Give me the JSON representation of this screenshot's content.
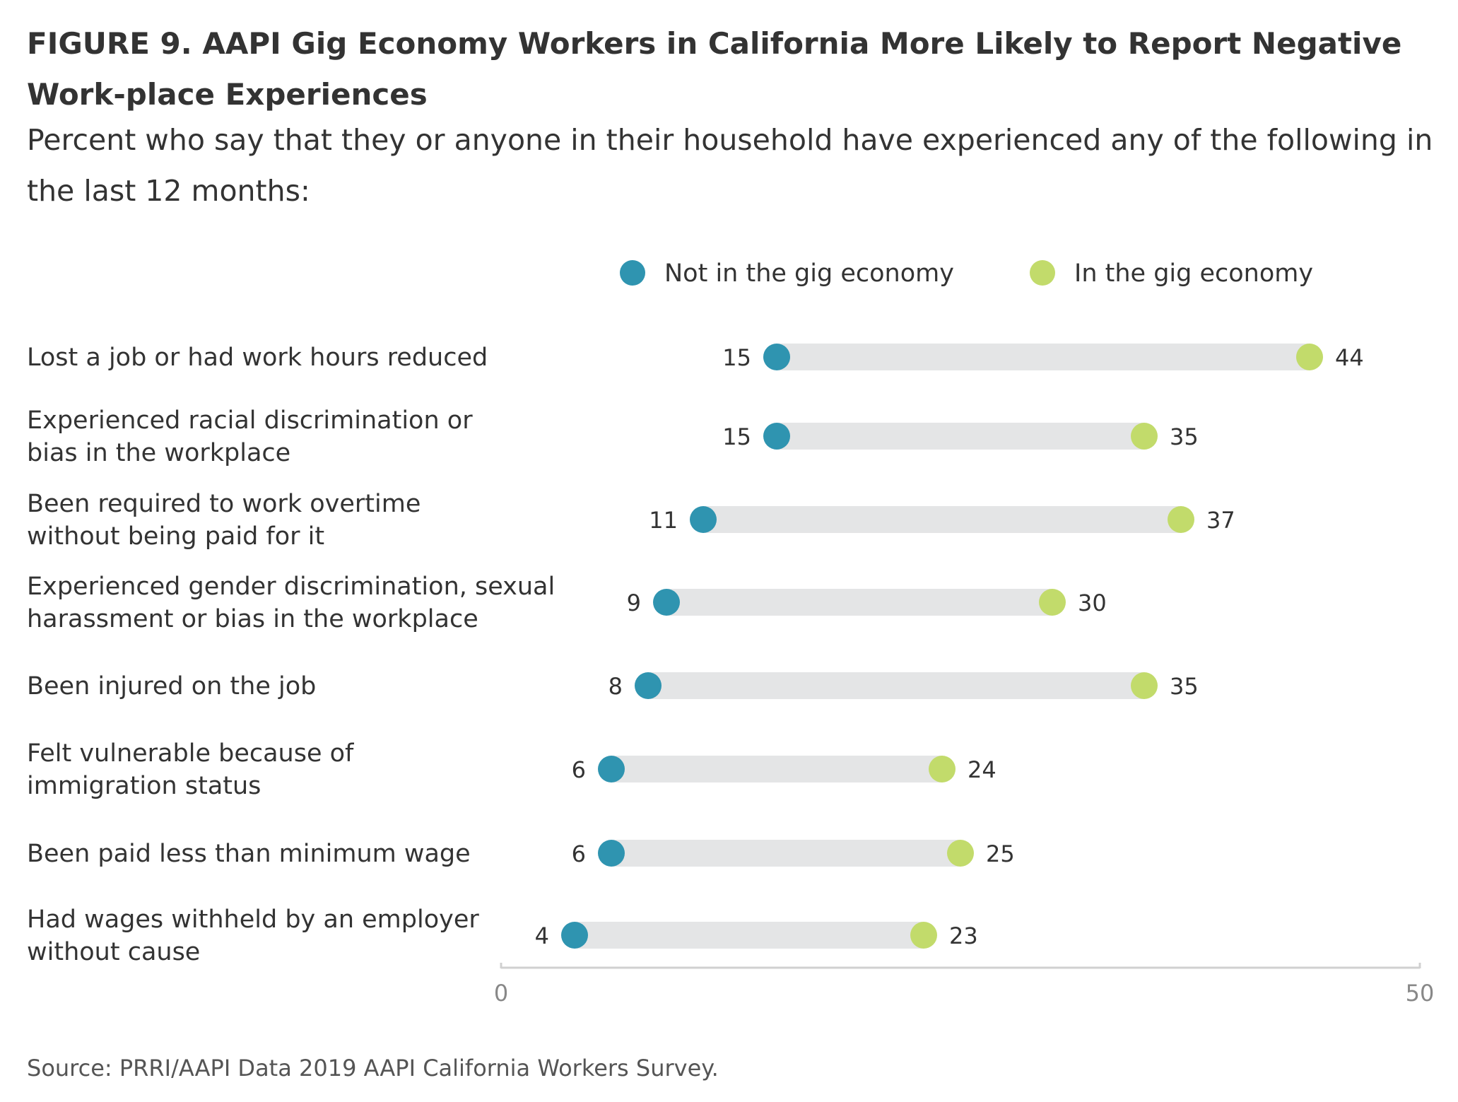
{
  "chart_data": {
    "type": "dumbbell",
    "title": "FIGURE 9. AAPI Gig Economy Workers in California More Likely to Report Negative Work-place Experiences",
    "subtitle": "Percent who say that they or anyone in their household have experienced any of the following in the last 12 months:",
    "categories": [
      "Lost a job or had work hours reduced",
      "Experienced racial discrimination or bias in the workplace",
      "Been required to work overtime without being paid for it",
      "Experienced gender discrimination, sexual harassment or bias in the workplace",
      "Been injured on the job",
      "Felt vulnerable because of immigration status",
      "Been paid less than minimum wage",
      "Had wages withheld by an employer without cause"
    ],
    "category_lines": [
      [
        "Lost a job or had work hours reduced"
      ],
      [
        "Experienced racial discrimination or",
        "bias in the workplace"
      ],
      [
        "Been required to work overtime",
        "without being paid for it"
      ],
      [
        "Experienced gender discrimination, sexual",
        "harassment or bias in the workplace"
      ],
      [
        "Been injured on the job"
      ],
      [
        "Felt vulnerable because of",
        "immigration status"
      ],
      [
        "Been paid less than minimum wage"
      ],
      [
        "Had wages withheld by an employer",
        "without cause"
      ]
    ],
    "series": [
      {
        "name": "Not in the gig economy",
        "color": "#2f94b0",
        "values": [
          15,
          15,
          11,
          9,
          8,
          6,
          6,
          4
        ]
      },
      {
        "name": "In the gig economy",
        "color": "#c2db6b",
        "values": [
          44,
          35,
          37,
          30,
          35,
          24,
          25,
          23
        ]
      }
    ],
    "xlim": [
      0,
      50
    ],
    "xticks": [
      "0",
      "50"
    ],
    "legend": "top",
    "grid": false,
    "bar_color": "#e4e5e6",
    "axis_color": "#d0d0d0"
  },
  "source": "Source: PRRI/AAPI Data 2019 AAPI California Workers Survey."
}
